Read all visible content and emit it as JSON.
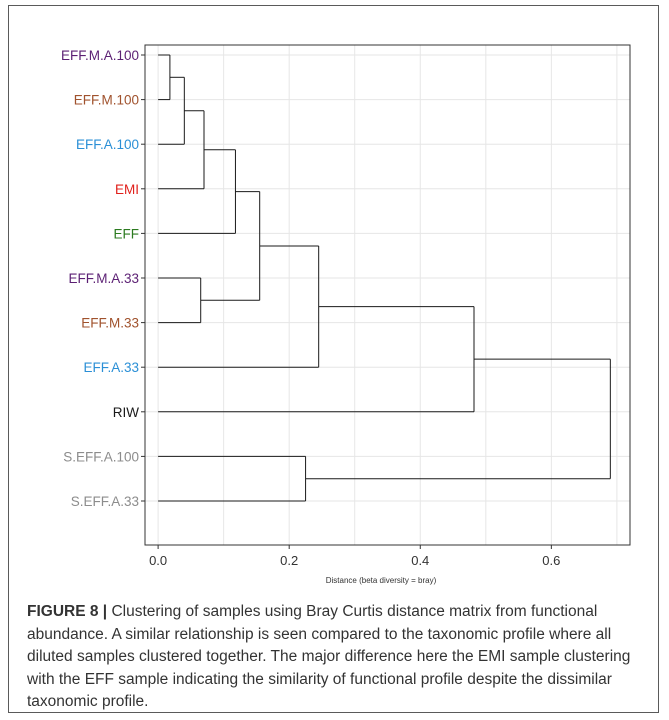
{
  "chart_data": {
    "type": "dendrogram",
    "xlabel": "Distance (beta diversity = bray)",
    "ylabel": "",
    "xlim": [
      -0.02,
      0.72
    ],
    "x_ticks": [
      0.0,
      0.2,
      0.4,
      0.6
    ],
    "x_tick_labels": [
      "0.0",
      "0.2",
      "0.4",
      "0.6"
    ],
    "grid": true,
    "leaves": [
      {
        "label": "EFF.M.A.100",
        "color": "#5b1f73"
      },
      {
        "label": "EFF.M.100",
        "color": "#a0522d"
      },
      {
        "label": "EFF.A.100",
        "color": "#2a8fd6"
      },
      {
        "label": "EMI",
        "color": "#e0201b"
      },
      {
        "label": "EFF",
        "color": "#2b7a1f"
      },
      {
        "label": "EFF.M.A.33",
        "color": "#5b1f73"
      },
      {
        "label": "EFF.M.33",
        "color": "#a0522d"
      },
      {
        "label": "EFF.A.33",
        "color": "#2a8fd6"
      },
      {
        "label": "RIW",
        "color": "#1a1a1a"
      },
      {
        "label": "S.EFF.A.100",
        "color": "#8c8c8c"
      },
      {
        "label": "S.EFF.A.33",
        "color": "#8c8c8c"
      }
    ],
    "merges": [
      {
        "left": "EFF.M.A.100",
        "right": "EFF.M.100",
        "height": 0.018
      },
      {
        "left": "m1",
        "right": "EFF.A.100",
        "height": 0.04
      },
      {
        "left": "m2",
        "right": "EMI",
        "height": 0.07
      },
      {
        "left": "m3",
        "right": "EFF",
        "height": 0.118
      },
      {
        "left": "EFF.M.A.33",
        "right": "EFF.M.33",
        "height": 0.065
      },
      {
        "left": "m4",
        "right": "m5",
        "height": 0.155
      },
      {
        "left": "m6",
        "right": "EFF.A.33",
        "height": 0.245
      },
      {
        "left": "m7",
        "right": "RIW",
        "height": 0.482
      },
      {
        "left": "S.EFF.A.100",
        "right": "S.EFF.A.33",
        "height": 0.225
      },
      {
        "left": "m8",
        "right": "m9",
        "height": 0.69
      }
    ]
  },
  "caption": {
    "lead": "FIGURE 8 |",
    "text": " Clustering of samples using Bray Curtis distance matrix from functional abundance. A similar relationship is seen compared to the taxonomic profile where all diluted samples clustered together. The major difference here the EMI sample clustering with the EFF sample indicating the similarity of functional profile despite the dissimilar taxonomic profile."
  },
  "colors": {
    "frame": "#5a5a5a",
    "grid": "#e6e6e6",
    "line": "#1a1a1a",
    "axis": "#333333"
  }
}
